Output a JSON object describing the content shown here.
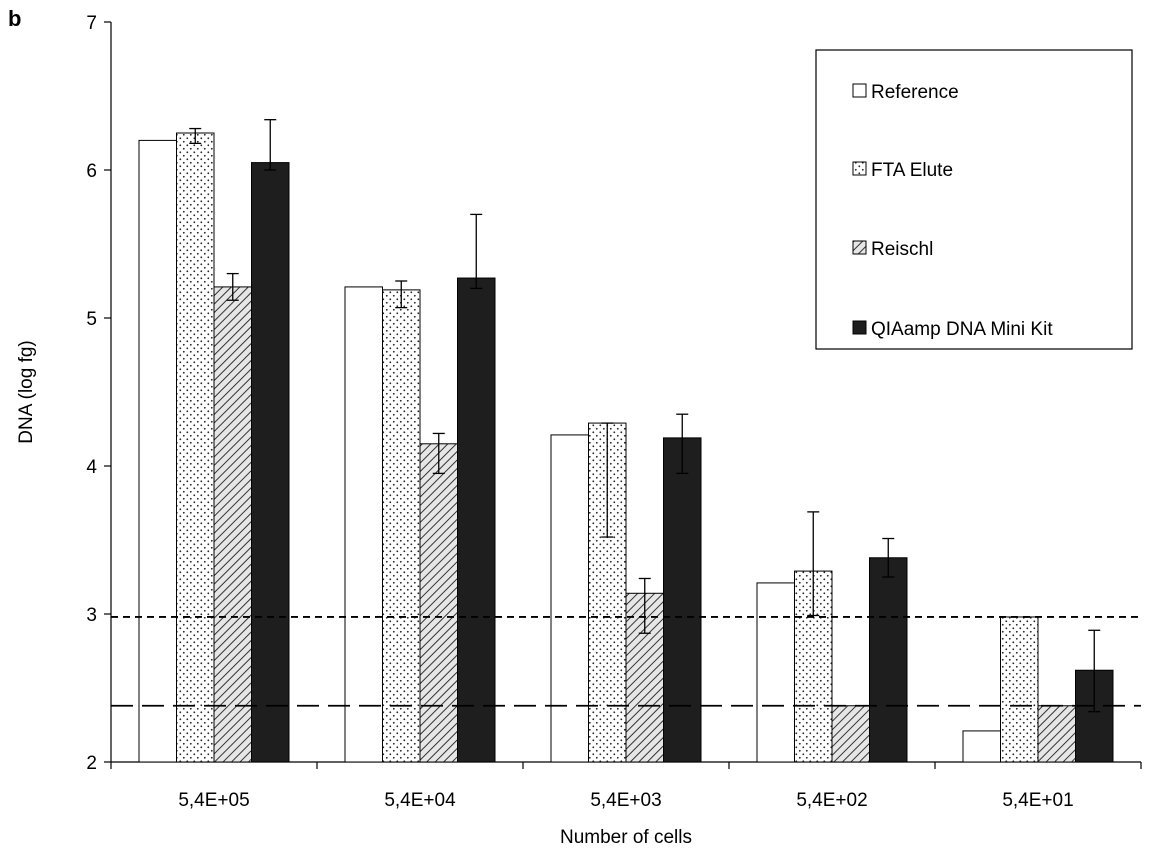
{
  "panel_label": "b",
  "colors": {
    "axis": "#000000",
    "reference": "#ffffff",
    "fta_elute": "#ffffff",
    "reischl": "#e6e6e6",
    "qiaamp": "#1e1e1e"
  },
  "chart_data": {
    "type": "bar",
    "title": "",
    "xlabel": "Number of cells",
    "ylabel": "DNA (log fg)",
    "ylim": [
      2,
      7
    ],
    "yticks": [
      "2",
      "3",
      "4",
      "5",
      "6",
      "7"
    ],
    "categories": [
      "5,4E+05",
      "5,4E+04",
      "5,4E+03",
      "5,4E+02",
      "5,4E+01"
    ],
    "series": [
      {
        "name": "Reference",
        "pattern": "white",
        "values": [
          6.2,
          5.21,
          4.21,
          3.21,
          2.21
        ]
      },
      {
        "name": "FTA Elute",
        "pattern": "dots",
        "values": [
          6.25,
          5.19,
          4.29,
          3.29,
          2.98
        ],
        "error_low": [
          6.18,
          5.07,
          3.52,
          2.99,
          null
        ],
        "error_high": [
          6.28,
          5.25,
          4.29,
          3.69,
          null
        ]
      },
      {
        "name": "Reischl",
        "pattern": "diagonal-hatch",
        "values": [
          5.21,
          4.15,
          3.14,
          2.38,
          2.38
        ],
        "error_low": [
          5.12,
          3.95,
          2.87,
          null,
          null
        ],
        "error_high": [
          5.3,
          4.22,
          3.24,
          null,
          null
        ]
      },
      {
        "name": "QIAamp DNA Mini Kit",
        "pattern": "black",
        "values": [
          6.05,
          5.27,
          4.19,
          3.38,
          2.62
        ],
        "error_low": [
          6.0,
          5.2,
          3.95,
          3.25,
          2.34
        ],
        "error_high": [
          6.34,
          5.7,
          4.35,
          3.51,
          2.89
        ]
      }
    ],
    "reference_lines": [
      {
        "y": 2.98,
        "style": "short-dash"
      },
      {
        "y": 2.38,
        "style": "long-dash"
      }
    ],
    "legend_position": "top-right",
    "grid": false
  }
}
